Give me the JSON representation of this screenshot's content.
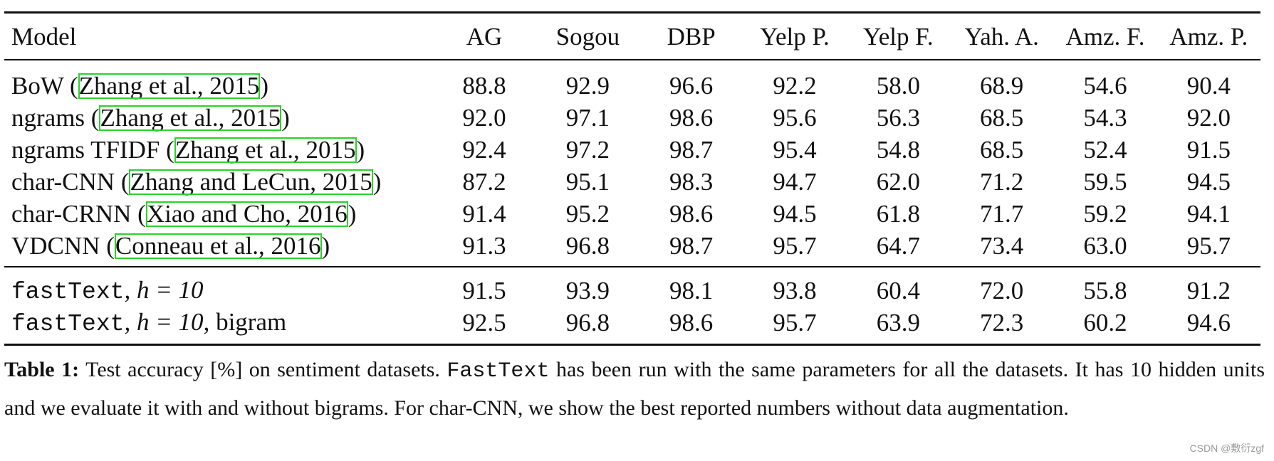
{
  "table": {
    "headers": [
      "Model",
      "AG",
      "Sogou",
      "DBP",
      "Yelp P.",
      "Yelp F.",
      "Yah. A.",
      "Amz. F.",
      "Amz. P."
    ],
    "baselines": [
      {
        "name": "BoW (",
        "cite": "Zhang et al., 2015",
        "close": ")",
        "values": [
          "88.8",
          "92.9",
          "96.6",
          "92.2",
          "58.0",
          "68.9",
          "54.6",
          "90.4"
        ]
      },
      {
        "name": "ngrams (",
        "cite": "Zhang et al., 2015",
        "close": ")",
        "values": [
          "92.0",
          "97.1",
          "98.6",
          "95.6",
          "56.3",
          "68.5",
          "54.3",
          "92.0"
        ]
      },
      {
        "name": "ngrams TFIDF (",
        "cite": "Zhang et al., 2015",
        "close": ")",
        "values": [
          "92.4",
          "97.2",
          "98.7",
          "95.4",
          "54.8",
          "68.5",
          "52.4",
          "91.5"
        ]
      },
      {
        "name": "char-CNN (",
        "cite": "Zhang and LeCun, 2015",
        "close": ")",
        "values": [
          "87.2",
          "95.1",
          "98.3",
          "94.7",
          "62.0",
          "71.2",
          "59.5",
          "94.5"
        ]
      },
      {
        "name": "char-CRNN (",
        "cite": "Xiao and Cho, 2016",
        "close": ")",
        "values": [
          "91.4",
          "95.2",
          "98.6",
          "94.5",
          "61.8",
          "71.7",
          "59.2",
          "94.1"
        ]
      },
      {
        "name": "VDCNN (",
        "cite": "Conneau et al., 2016",
        "close": ")",
        "values": [
          "91.3",
          "96.8",
          "98.7",
          "95.7",
          "64.7",
          "73.4",
          "63.0",
          "95.7"
        ]
      }
    ],
    "fasttext": [
      {
        "mono": "fastText",
        "math": ", h = 10",
        "suffix": "",
        "values": [
          "91.5",
          "93.9",
          "98.1",
          "93.8",
          "60.4",
          "72.0",
          "55.8",
          "91.2"
        ]
      },
      {
        "mono": "fastText",
        "math": ", h = 10",
        "suffix": ", bigram",
        "values": [
          "92.5",
          "96.8",
          "98.6",
          "95.7",
          "63.9",
          "72.3",
          "60.2",
          "94.6"
        ]
      }
    ]
  },
  "caption": {
    "label": "Table 1:",
    "text1": " Test accuracy [%] on sentiment datasets. ",
    "mono": "FastText",
    "text2": " has been run with the same parameters for all the datasets. It has 10 hidden units and we evaluate it with and without bigrams. For char-CNN, we show the best reported numbers without data augmentation."
  },
  "watermark": "CSDN @敷衍zgf"
}
